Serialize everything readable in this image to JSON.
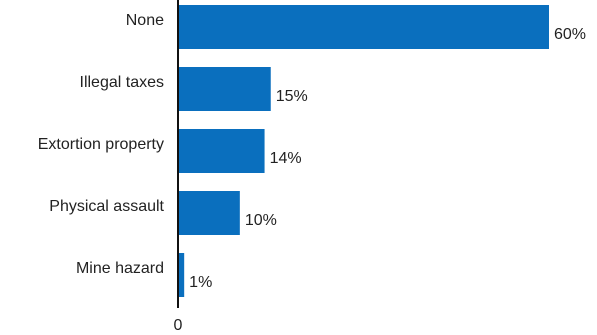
{
  "chart_data": {
    "type": "bar",
    "orientation": "horizontal",
    "categories": [
      "None",
      "Illegal taxes",
      "Extortion property",
      "Physical assault",
      "Mine hazard"
    ],
    "values": [
      60,
      15,
      14,
      10,
      1
    ],
    "value_labels": [
      "60%",
      "15%",
      "14%",
      "10%",
      "1%"
    ],
    "unit": "%",
    "x_tick_labels": [
      "0"
    ],
    "title": "",
    "xlabel": "",
    "ylabel": "",
    "xlim": [
      0,
      60
    ],
    "grid": false,
    "bar_color": "#0a6fbe",
    "axis_color": "#111111"
  }
}
